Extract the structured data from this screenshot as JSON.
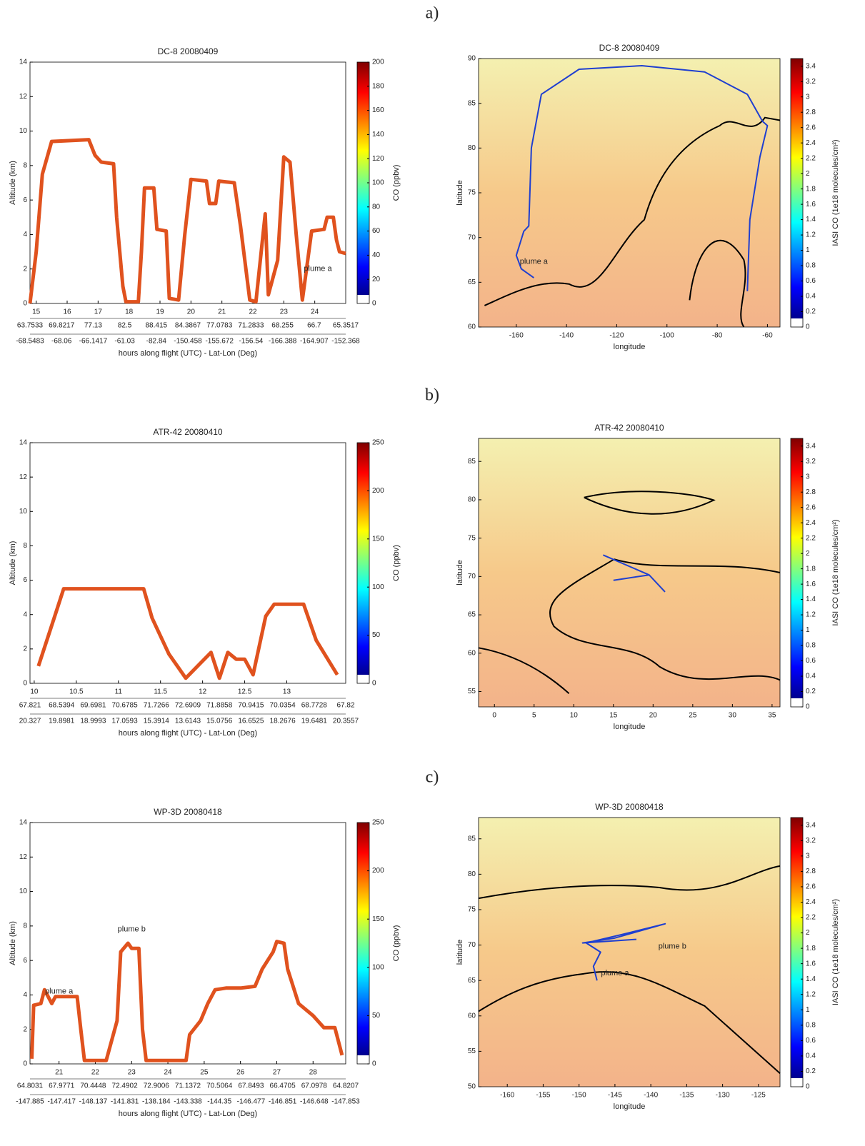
{
  "panel_labels": [
    "a)",
    "b)",
    "c)"
  ],
  "chart_data": [
    {
      "type": "line",
      "title": "DC-8 20080409",
      "ylabel": "Altitude (km)",
      "xlabel": "hours along flight (UTC) - Lat-Lon (Deg)",
      "xlim": [
        14.8,
        25
      ],
      "xticks": [
        15,
        16,
        17,
        18,
        19,
        20,
        21,
        22,
        23,
        24
      ],
      "ylim": [
        0,
        14
      ],
      "yticks": [
        0,
        2,
        4,
        6,
        8,
        10,
        12,
        14
      ],
      "x_lat_labels": [
        63.7533,
        69.8217,
        77.13,
        82.5,
        88.415,
        84.3867,
        77.0783,
        71.2833,
        68.255,
        66.7,
        65.3517
      ],
      "x_lon_labels": [
        -68.5483,
        -68.06,
        -66.1417,
        -61.03,
        -82.84,
        -150.458,
        -155.672,
        -156.54,
        -166.388,
        -164.907,
        -152.368
      ],
      "x": [
        14.8,
        15.0,
        15.2,
        15.5,
        16.7,
        16.9,
        17.1,
        17.5,
        17.6,
        17.8,
        17.9,
        18.3,
        18.4,
        18.5,
        18.8,
        18.9,
        19.2,
        19.3,
        19.6,
        19.8,
        20,
        20.5,
        20.6,
        20.8,
        20.9,
        21.4,
        21.6,
        21.9,
        22.1,
        22.4,
        22.5,
        22.8,
        23.0,
        23.2,
        23.4,
        23.6,
        23.9,
        24.3,
        24.4,
        24.6,
        24.7,
        24.8,
        25
      ],
      "values": [
        0,
        3,
        7.5,
        9.4,
        9.5,
        8.6,
        8.2,
        8.1,
        5,
        1,
        0.1,
        0.1,
        3,
        6.7,
        6.7,
        4.3,
        4.2,
        0.3,
        0.2,
        4,
        7.2,
        7.1,
        5.8,
        5.8,
        7.1,
        7,
        4.5,
        0.2,
        0.1,
        5.2,
        0.5,
        2.5,
        8.5,
        8.2,
        4,
        0.2,
        4.2,
        4.3,
        5,
        5,
        3.7,
        3,
        2.9
      ],
      "color": "#e0521e",
      "annotations": [
        {
          "text": "plume a",
          "x": 24.1,
          "y": 2
        }
      ],
      "colorbar": {
        "label": "CO (ppbv)",
        "lim": [
          0,
          200
        ],
        "ticks": [
          0,
          20,
          40,
          60,
          80,
          100,
          120,
          140,
          160,
          180,
          200
        ]
      }
    },
    {
      "type": "map",
      "title": "DC-8 20080409",
      "xlabel": "longitude",
      "ylabel": "latitude",
      "xlim": [
        -175,
        -55
      ],
      "xticks": [
        -160,
        -140,
        -120,
        -100,
        -80,
        -60
      ],
      "ylim": [
        60,
        90
      ],
      "yticks": [
        60,
        65,
        70,
        75,
        80,
        85,
        90
      ],
      "lon": [
        -153,
        -158,
        -160,
        -157,
        -155,
        -154,
        -150,
        -135,
        -110,
        -85,
        -68,
        -62,
        -60,
        -63,
        -67,
        -68
      ],
      "lat": [
        65.5,
        66.5,
        68,
        70.7,
        71.3,
        80,
        86,
        88.8,
        89.2,
        88.5,
        86,
        83,
        82.5,
        79,
        72,
        64
      ],
      "color": "#1f3fd0",
      "annotations": [
        {
          "text": "plume a",
          "x": -153,
          "y": 67.3
        }
      ],
      "colorbar": {
        "label": "IASI CO (1e18 molecules/cm²)",
        "lim": [
          0,
          3.5
        ],
        "ticks": [
          0,
          0.2,
          0.4,
          0.6,
          0.8,
          1,
          1.2,
          1.4,
          1.6,
          1.8,
          2,
          2.2,
          2.4,
          2.6,
          2.8,
          3,
          3.2,
          3.4
        ]
      }
    },
    {
      "type": "line",
      "title": "ATR-42 20080410",
      "ylabel": "Altitude (km)",
      "xlabel": "hours along flight (UTC) - Lat-Lon (Deg)",
      "xlim": [
        9.95,
        13.7
      ],
      "xticks": [
        10,
        10.5,
        11,
        11.5,
        12,
        12.5,
        13
      ],
      "ylim": [
        0,
        14
      ],
      "yticks": [
        0,
        2,
        4,
        6,
        8,
        10,
        12,
        14
      ],
      "x_lat_labels": [
        67.821,
        68.5394,
        69.6981,
        70.6785,
        71.7266,
        72.6909,
        71.8858,
        70.9415,
        70.0354,
        68.7728,
        67.82
      ],
      "x_lon_labels": [
        20.327,
        19.8981,
        18.9993,
        17.0593,
        15.3914,
        13.6143,
        15.0756,
        16.6525,
        18.2676,
        19.6481,
        20.3557
      ],
      "x": [
        10.05,
        10.25,
        10.35,
        10.7,
        11.3,
        11.4,
        11.6,
        11.8,
        12,
        12.1,
        12.2,
        12.3,
        12.4,
        12.5,
        12.6,
        12.75,
        12.85,
        13.2,
        13.35,
        13.6
      ],
      "values": [
        1,
        4,
        5.5,
        5.5,
        5.5,
        3.8,
        1.7,
        0.3,
        1.3,
        1.8,
        0.3,
        1.8,
        1.4,
        1.4,
        0.5,
        3.9,
        4.6,
        4.6,
        2.5,
        0.5
      ],
      "color": "#e0521e",
      "annotations": [],
      "colorbar": {
        "label": "CO (ppbv)",
        "lim": [
          0,
          250
        ],
        "ticks": [
          0,
          50,
          100,
          150,
          200,
          250
        ]
      }
    },
    {
      "type": "map",
      "title": "ATR-42 20080410",
      "xlabel": "longitude",
      "ylabel": "latitude",
      "xlim": [
        -2,
        36
      ],
      "xticks": [
        0,
        5,
        10,
        15,
        20,
        25,
        30,
        35
      ],
      "ylim": [
        53,
        88
      ],
      "yticks": [
        55,
        60,
        65,
        70,
        75,
        80,
        85
      ],
      "lon": [
        13.7,
        19.5,
        21.5,
        null,
        15,
        19.5
      ],
      "lat": [
        72.8,
        70.2,
        68,
        null,
        69.5,
        70.2
      ],
      "color": "#1f3fd0",
      "annotations": [],
      "colorbar": {
        "label": "IASI CO (1e18 molecules/cm²)",
        "lim": [
          0,
          3.5
        ],
        "ticks": [
          0,
          0.2,
          0.4,
          0.6,
          0.8,
          1,
          1.2,
          1.4,
          1.6,
          1.8,
          2,
          2.2,
          2.4,
          2.6,
          2.8,
          3,
          3.2,
          3.4
        ]
      }
    },
    {
      "type": "line",
      "title": "WP-3D 20080418",
      "ylabel": "Altitude (km)",
      "xlabel": "hours along flight (UTC) - Lat-Lon (Deg)",
      "xlim": [
        20.2,
        28.9
      ],
      "xticks": [
        21,
        22,
        23,
        24,
        25,
        26,
        27,
        28
      ],
      "ylim": [
        0,
        14
      ],
      "yticks": [
        0,
        2,
        4,
        6,
        8,
        10,
        12,
        14
      ],
      "x_lat_labels": [
        64.8031,
        67.9771,
        70.4448,
        72.4902,
        72.9006,
        71.1372,
        70.5064,
        67.8493,
        66.4705,
        67.0978,
        64.8207
      ],
      "x_lon_labels": [
        -147.885,
        -147.417,
        -148.137,
        -141.831,
        -138.184,
        -143.338,
        -144.35,
        -146.477,
        -146.851,
        -146.648,
        -147.853
      ],
      "x": [
        20.25,
        20.3,
        20.5,
        20.6,
        20.8,
        20.9,
        21.5,
        21.6,
        21.7,
        22.3,
        22.6,
        22.7,
        22.9,
        23.0,
        23.2,
        23.3,
        23.4,
        24.5,
        24.6,
        24.9,
        25.1,
        25.3,
        25.6,
        26,
        26.4,
        26.6,
        26.9,
        27.0,
        27.2,
        27.3,
        27.6,
        28,
        28.3,
        28.6,
        28.8
      ],
      "values": [
        0.3,
        3.4,
        3.5,
        4.3,
        3.5,
        3.9,
        3.9,
        2,
        0.2,
        0.2,
        2.5,
        6.5,
        7,
        6.7,
        6.7,
        2,
        0.2,
        0.2,
        1.7,
        2.5,
        3.5,
        4.3,
        4.4,
        4.4,
        4.5,
        5.5,
        6.5,
        7.1,
        7,
        5.5,
        3.5,
        2.8,
        2.1,
        2.1,
        0.5
      ],
      "color": "#e0521e",
      "annotations": [
        {
          "text": "plume a",
          "x": 21,
          "y": 4.2
        },
        {
          "text": "plume b",
          "x": 23,
          "y": 7.8
        }
      ],
      "colorbar": {
        "label": "CO (ppbv)",
        "lim": [
          0,
          250
        ],
        "ticks": [
          0,
          50,
          100,
          150,
          200,
          250
        ]
      }
    },
    {
      "type": "map",
      "title": "WP-3D 20080418",
      "xlabel": "longitude",
      "ylabel": "latitude",
      "xlim": [
        -164,
        -122
      ],
      "xticks": [
        -160,
        -155,
        -150,
        -145,
        -140,
        -135,
        -130,
        -125
      ],
      "ylim": [
        50,
        88
      ],
      "yticks": [
        50,
        55,
        60,
        65,
        70,
        75,
        80,
        85
      ],
      "lon": [
        -147.5,
        -148,
        -147,
        -149,
        -144,
        -138,
        -145,
        -149.5,
        -142
      ],
      "lat": [
        65,
        67,
        69,
        70.3,
        71.5,
        73,
        71,
        70.3,
        70.8
      ],
      "color": "#1f3fd0",
      "annotations": [
        {
          "text": "plume b",
          "x": -137,
          "y": 69.8
        },
        {
          "text": "plume a",
          "x": -145,
          "y": 66
        }
      ],
      "colorbar": {
        "label": "IASI CO (1e18 molecules/cm²)",
        "lim": [
          0,
          3.5
        ],
        "ticks": [
          0,
          0.2,
          0.4,
          0.6,
          0.8,
          1,
          1.2,
          1.4,
          1.6,
          1.8,
          2,
          2.2,
          2.4,
          2.6,
          2.8,
          3,
          3.2,
          3.4
        ]
      }
    }
  ]
}
